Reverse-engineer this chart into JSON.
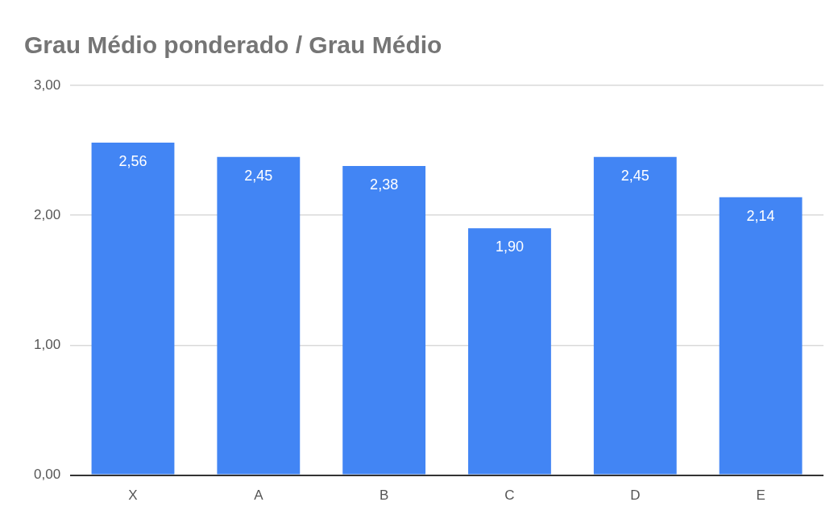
{
  "chart_data": {
    "type": "bar",
    "title": "Grau Médio ponderado / Grau Médio",
    "categories": [
      "X",
      "A",
      "B",
      "C",
      "D",
      "E"
    ],
    "values": [
      2.56,
      2.45,
      2.38,
      1.9,
      2.45,
      2.14
    ],
    "value_labels": [
      "2,56",
      "2,45",
      "2,38",
      "1,90",
      "2,45",
      "2,14"
    ],
    "color": "#4285f4",
    "ylim": [
      0,
      3
    ],
    "yticks": [
      {
        "value": 0,
        "label": "0,00"
      },
      {
        "value": 1,
        "label": "1,00"
      },
      {
        "value": 2,
        "label": "2,00"
      },
      {
        "value": 3,
        "label": "3,00"
      }
    ],
    "grid": "y",
    "legend": false
  }
}
